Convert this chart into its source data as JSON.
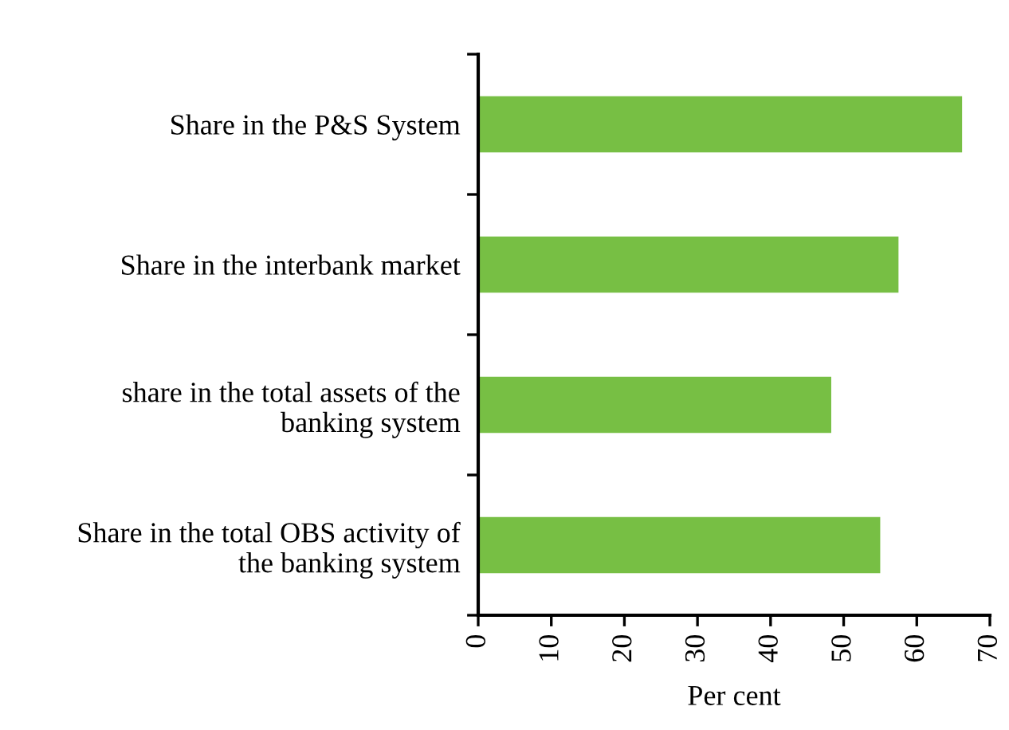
{
  "chart_data": {
    "type": "bar",
    "orientation": "horizontal",
    "xlabel": "Per cent",
    "categories": [
      "Share in the P&S System",
      "Share in the interbank market",
      "share in the total assets of the\nbanking system",
      "Share in the total OBS activity of\nthe banking system"
    ],
    "values": [
      66.2,
      57.5,
      48.3,
      55.0
    ],
    "color": "#77bf44",
    "xlim": [
      0,
      70
    ],
    "xticks": [
      0,
      10,
      20,
      30,
      40,
      50,
      60,
      70
    ],
    "grid": false,
    "legend": false
  }
}
